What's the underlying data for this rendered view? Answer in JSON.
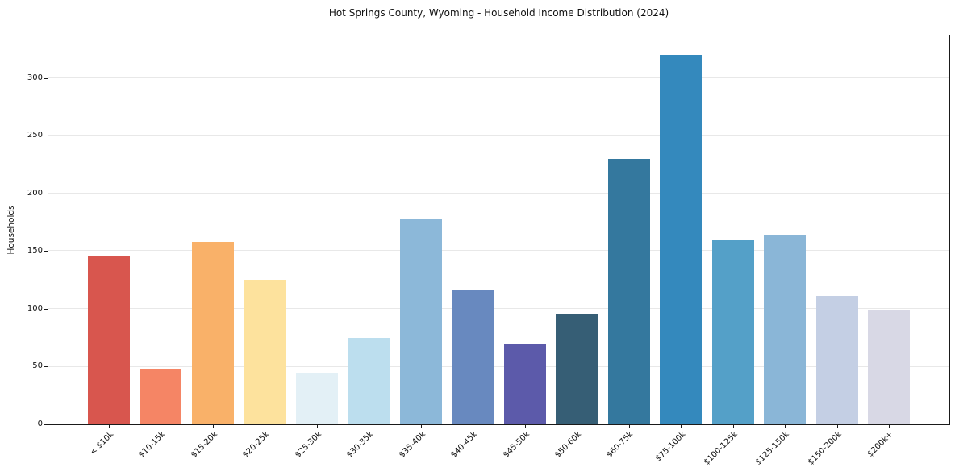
{
  "chart_data": {
    "type": "bar",
    "title": "Hot Springs County, Wyoming - Household Income Distribution (2024)",
    "xlabel": "",
    "ylabel": "Households",
    "categories": [
      "< $10k",
      "$10-15k",
      "$15-20k",
      "$20-25k",
      "$25-30k",
      "$30-35k",
      "$35-40k",
      "$40-45k",
      "$45-50k",
      "$50-60k",
      "$60-75k",
      "$75-100k",
      "$100-125k",
      "$125-150k",
      "$150-200k",
      "$200k+"
    ],
    "values": [
      146,
      48,
      158,
      125,
      45,
      75,
      178,
      117,
      69,
      96,
      230,
      320,
      160,
      164,
      111,
      99
    ],
    "bar_colors": [
      "#d8564e",
      "#f58565",
      "#f9b169",
      "#fde29d",
      "#e3f0f6",
      "#bcdeee",
      "#8cb8d9",
      "#6889bf",
      "#5c5aaa",
      "#365e75",
      "#34789e",
      "#3489bd",
      "#54a0c8",
      "#8ab6d7",
      "#c4cfe4",
      "#d8d8e5"
    ],
    "yticks": [
      0,
      50,
      100,
      150,
      200,
      250,
      300
    ],
    "ylim": [
      0,
      337
    ],
    "grid": "horizontal",
    "legend": "none",
    "x_tick_rotation_deg": 45
  },
  "colors": {
    "background": "#ffffff",
    "grid": "#e8e8e8",
    "spine": "#1a1a1a",
    "text": "#111111"
  }
}
